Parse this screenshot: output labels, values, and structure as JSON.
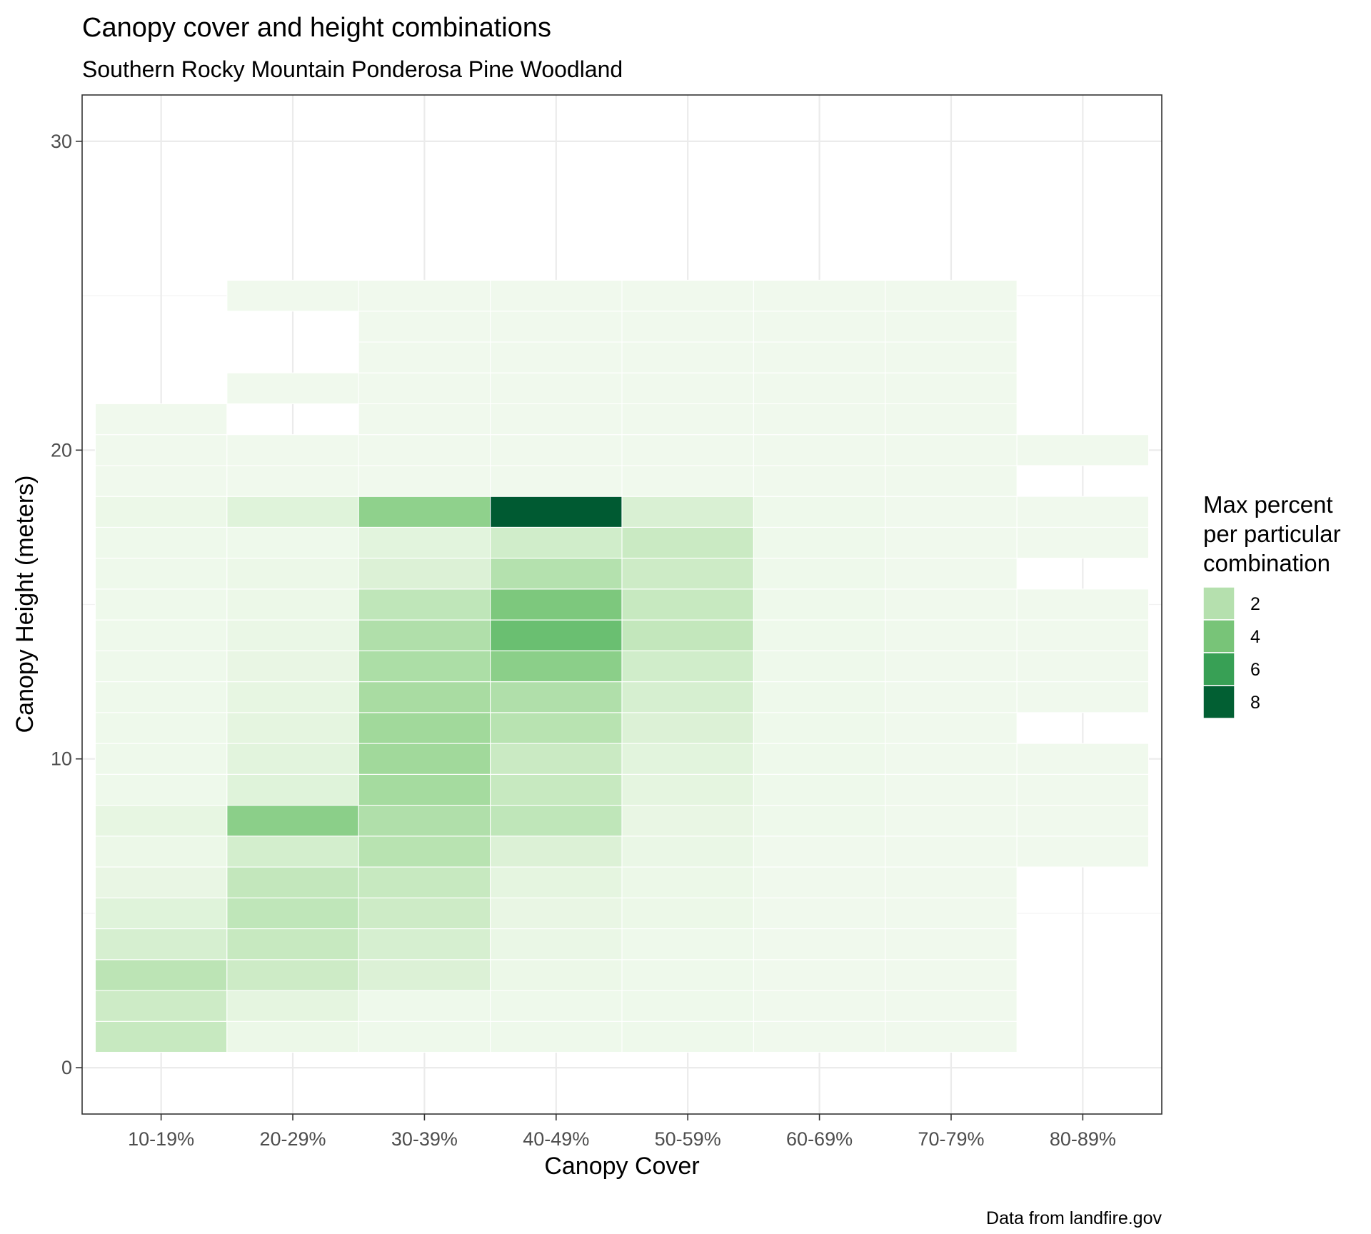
{
  "chart_data": {
    "type": "heatmap",
    "title": "Canopy cover and height combinations",
    "subtitle": "Southern Rocky Mountain Ponderosa Pine Woodland",
    "xlabel": "Canopy Cover",
    "ylabel": "Canopy Height (meters)",
    "caption": "Data from landfire.gov",
    "categories": [
      "10-19%",
      "20-29%",
      "30-39%",
      "40-49%",
      "50-59%",
      "60-69%",
      "70-79%",
      "80-89%"
    ],
    "y_ticks": [
      0,
      10,
      20,
      30
    ],
    "ylim": [
      -1.5,
      31.5
    ],
    "grid": true,
    "legend": {
      "title_lines": [
        "Max percent",
        "per particular",
        "combination"
      ],
      "position": "right",
      "values": [
        2,
        4,
        6,
        8
      ],
      "colors": [
        "#b5e0ae",
        "#78c478",
        "#38a055",
        "#025f33"
      ]
    },
    "color_scale": {
      "min": 0,
      "max": 8.6,
      "stops": [
        [
          0,
          "#f7fcf5"
        ],
        [
          1,
          "#e5f5e0"
        ],
        [
          2,
          "#c7e9c0"
        ],
        [
          3,
          "#a1d99b"
        ],
        [
          4,
          "#74c476"
        ],
        [
          6,
          "#31a354"
        ],
        [
          8.6,
          "#005a32"
        ]
      ]
    },
    "series": [
      {
        "category": "10-19%",
        "cells": [
          [
            1,
            2.0
          ],
          [
            2,
            1.8
          ],
          [
            3,
            2.3
          ],
          [
            4,
            1.5
          ],
          [
            5,
            1.2
          ],
          [
            6,
            0.8
          ],
          [
            7,
            0.6
          ],
          [
            8,
            0.9
          ],
          [
            9,
            0.5
          ],
          [
            10,
            0.5
          ],
          [
            11,
            0.5
          ],
          [
            12,
            0.5
          ],
          [
            13,
            0.5
          ],
          [
            14,
            0.5
          ],
          [
            15,
            0.5
          ],
          [
            16,
            0.5
          ],
          [
            17,
            0.5
          ],
          [
            18,
            0.6
          ],
          [
            19,
            0.4
          ],
          [
            20,
            0.4
          ],
          [
            21,
            0.4
          ]
        ]
      },
      {
        "category": "20-29%",
        "cells": [
          [
            1,
            0.6
          ],
          [
            2,
            1.0
          ],
          [
            3,
            1.8
          ],
          [
            4,
            2.0
          ],
          [
            5,
            2.2
          ],
          [
            6,
            2.1
          ],
          [
            7,
            1.6
          ],
          [
            8,
            3.5
          ],
          [
            9,
            1.2
          ],
          [
            10,
            1.1
          ],
          [
            11,
            1.0
          ],
          [
            12,
            0.9
          ],
          [
            13,
            0.8
          ],
          [
            14,
            0.7
          ],
          [
            15,
            0.6
          ],
          [
            16,
            0.6
          ],
          [
            17,
            0.5
          ],
          [
            18,
            1.2
          ],
          [
            19,
            0.4
          ],
          [
            20,
            0.4
          ],
          [
            22,
            0.4
          ],
          [
            25,
            0.4
          ]
        ]
      },
      {
        "category": "30-39%",
        "cells": [
          [
            1,
            0.5
          ],
          [
            2,
            0.5
          ],
          [
            3,
            1.3
          ],
          [
            4,
            1.5
          ],
          [
            5,
            1.8
          ],
          [
            6,
            2.0
          ],
          [
            7,
            2.4
          ],
          [
            8,
            2.6
          ],
          [
            9,
            2.9
          ],
          [
            10,
            3.0
          ],
          [
            11,
            3.0
          ],
          [
            12,
            2.8
          ],
          [
            13,
            2.7
          ],
          [
            14,
            2.6
          ],
          [
            15,
            2.2
          ],
          [
            16,
            1.3
          ],
          [
            17,
            1.1
          ],
          [
            18,
            3.4
          ],
          [
            19,
            0.4
          ],
          [
            20,
            0.4
          ],
          [
            21,
            0.4
          ],
          [
            22,
            0.4
          ],
          [
            23,
            0.4
          ],
          [
            24,
            0.4
          ],
          [
            25,
            0.4
          ]
        ]
      },
      {
        "category": "40-49%",
        "cells": [
          [
            1,
            0.5
          ],
          [
            2,
            0.5
          ],
          [
            3,
            0.6
          ],
          [
            4,
            0.7
          ],
          [
            5,
            0.8
          ],
          [
            6,
            1.0
          ],
          [
            7,
            1.3
          ],
          [
            8,
            2.2
          ],
          [
            9,
            2.0
          ],
          [
            10,
            1.9
          ],
          [
            11,
            2.4
          ],
          [
            12,
            2.6
          ],
          [
            13,
            3.5
          ],
          [
            14,
            4.3
          ],
          [
            15,
            3.8
          ],
          [
            16,
            2.5
          ],
          [
            17,
            1.7
          ],
          [
            18,
            8.6
          ],
          [
            19,
            0.4
          ],
          [
            20,
            0.4
          ],
          [
            21,
            0.4
          ],
          [
            22,
            0.4
          ],
          [
            23,
            0.4
          ],
          [
            24,
            0.4
          ],
          [
            25,
            0.4
          ]
        ]
      },
      {
        "category": "50-59%",
        "cells": [
          [
            1,
            0.5
          ],
          [
            2,
            0.5
          ],
          [
            3,
            0.5
          ],
          [
            4,
            0.5
          ],
          [
            5,
            0.6
          ],
          [
            6,
            0.6
          ],
          [
            7,
            0.7
          ],
          [
            8,
            0.8
          ],
          [
            9,
            1.0
          ],
          [
            10,
            1.1
          ],
          [
            11,
            1.3
          ],
          [
            12,
            1.5
          ],
          [
            13,
            1.7
          ],
          [
            14,
            2.1
          ],
          [
            15,
            2.0
          ],
          [
            16,
            1.8
          ],
          [
            17,
            1.9
          ],
          [
            18,
            1.4
          ],
          [
            19,
            0.4
          ],
          [
            20,
            0.4
          ],
          [
            21,
            0.4
          ],
          [
            22,
            0.4
          ],
          [
            23,
            0.4
          ],
          [
            24,
            0.4
          ],
          [
            25,
            0.4
          ]
        ]
      },
      {
        "category": "60-69%",
        "cells": [
          [
            1,
            0.4
          ],
          [
            2,
            0.4
          ],
          [
            3,
            0.4
          ],
          [
            4,
            0.4
          ],
          [
            5,
            0.4
          ],
          [
            6,
            0.4
          ],
          [
            7,
            0.4
          ],
          [
            8,
            0.5
          ],
          [
            9,
            0.5
          ],
          [
            10,
            0.5
          ],
          [
            11,
            0.5
          ],
          [
            12,
            0.5
          ],
          [
            13,
            0.5
          ],
          [
            14,
            0.5
          ],
          [
            15,
            0.5
          ],
          [
            16,
            0.5
          ],
          [
            17,
            0.5
          ],
          [
            18,
            0.5
          ],
          [
            19,
            0.4
          ],
          [
            20,
            0.4
          ],
          [
            21,
            0.4
          ],
          [
            22,
            0.4
          ],
          [
            23,
            0.4
          ],
          [
            24,
            0.4
          ],
          [
            25,
            0.4
          ]
        ]
      },
      {
        "category": "70-79%",
        "cells": [
          [
            1,
            0.4
          ],
          [
            2,
            0.4
          ],
          [
            3,
            0.4
          ],
          [
            4,
            0.4
          ],
          [
            5,
            0.4
          ],
          [
            6,
            0.4
          ],
          [
            7,
            0.4
          ],
          [
            8,
            0.4
          ],
          [
            9,
            0.4
          ],
          [
            10,
            0.4
          ],
          [
            11,
            0.4
          ],
          [
            12,
            0.4
          ],
          [
            13,
            0.4
          ],
          [
            14,
            0.4
          ],
          [
            15,
            0.4
          ],
          [
            16,
            0.4
          ],
          [
            17,
            0.4
          ],
          [
            18,
            0.4
          ],
          [
            19,
            0.4
          ],
          [
            20,
            0.4
          ],
          [
            21,
            0.4
          ],
          [
            22,
            0.4
          ],
          [
            23,
            0.4
          ],
          [
            24,
            0.4
          ],
          [
            25,
            0.4
          ]
        ]
      },
      {
        "category": "80-89%",
        "cells": [
          [
            7,
            0.4
          ],
          [
            8,
            0.4
          ],
          [
            9,
            0.4
          ],
          [
            10,
            0.4
          ],
          [
            12,
            0.4
          ],
          [
            13,
            0.4
          ],
          [
            14,
            0.4
          ],
          [
            15,
            0.4
          ],
          [
            17,
            0.4
          ],
          [
            18,
            0.4
          ],
          [
            20,
            0.4
          ]
        ]
      }
    ]
  }
}
